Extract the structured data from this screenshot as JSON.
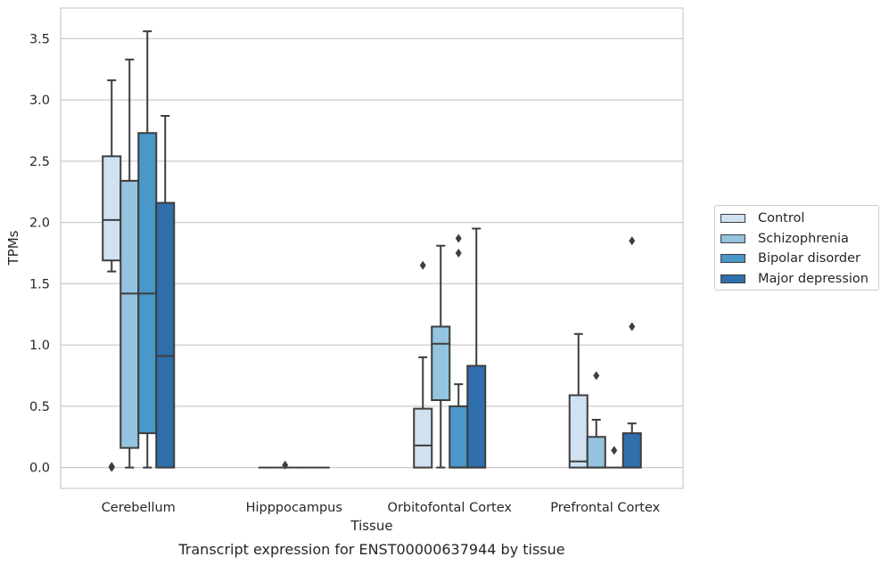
{
  "chart_data": {
    "type": "box",
    "xlabel": "Tissue",
    "ylabel": "TPMs",
    "caption": "Transcript expression for ENST00000637944 by tissue",
    "ylim": [
      -0.17,
      3.75
    ],
    "yticks": [
      0.0,
      0.5,
      1.0,
      1.5,
      2.0,
      2.5,
      3.0,
      3.5
    ],
    "ytick_labels": [
      "0.0",
      "0.5",
      "1.0",
      "1.5",
      "2.0",
      "2.5",
      "3.0",
      "3.5"
    ],
    "grid": "horizontal",
    "legend_position": "right",
    "categories": [
      "Cerebellum",
      "Hipppocampus",
      "Orbitofontal Cortex",
      "Prefrontal Cortex"
    ],
    "series": [
      {
        "name": "Control",
        "color": "#d0e1f2",
        "boxes": [
          {
            "whislo": 1.6,
            "q1": 1.69,
            "med": 2.02,
            "q3": 2.54,
            "whishi": 3.16,
            "fliers": [
              0.0,
              0.01
            ]
          },
          {
            "whislo": 0.0,
            "q1": 0.0,
            "med": 0.0,
            "q3": 0.0,
            "whishi": 0.0,
            "fliers": []
          },
          {
            "whislo": 0.0,
            "q1": 0.0,
            "med": 0.18,
            "q3": 0.48,
            "whishi": 0.9,
            "fliers": [
              1.65
            ]
          },
          {
            "whislo": 0.0,
            "q1": 0.0,
            "med": 0.05,
            "q3": 0.59,
            "whishi": 1.09,
            "fliers": []
          }
        ]
      },
      {
        "name": "Schizophrenia",
        "color": "#94c4df",
        "boxes": [
          {
            "whislo": 0.0,
            "q1": 0.16,
            "med": 1.42,
            "q3": 2.34,
            "whishi": 3.33,
            "fliers": []
          },
          {
            "whislo": 0.0,
            "q1": 0.0,
            "med": 0.0,
            "q3": 0.0,
            "whishi": 0.0,
            "fliers": [
              0.02
            ]
          },
          {
            "whislo": 0.0,
            "q1": 0.55,
            "med": 1.01,
            "q3": 1.15,
            "whishi": 1.81,
            "fliers": []
          },
          {
            "whislo": 0.0,
            "q1": 0.0,
            "med": 0.0,
            "q3": 0.25,
            "whishi": 0.39,
            "fliers": [
              0.75
            ]
          }
        ]
      },
      {
        "name": "Bipolar disorder",
        "color": "#4a98c9",
        "boxes": [
          {
            "whislo": 0.0,
            "q1": 0.28,
            "med": 1.42,
            "q3": 2.73,
            "whishi": 3.56,
            "fliers": []
          },
          {
            "whislo": 0.0,
            "q1": 0.0,
            "med": 0.0,
            "q3": 0.0,
            "whishi": 0.0,
            "fliers": []
          },
          {
            "whislo": 0.0,
            "q1": 0.0,
            "med": 0.0,
            "q3": 0.5,
            "whishi": 0.68,
            "fliers": [
              1.75,
              1.87
            ]
          },
          {
            "whislo": 0.0,
            "q1": 0.0,
            "med": 0.0,
            "q3": 0.0,
            "whishi": 0.0,
            "fliers": [
              0.14
            ]
          }
        ]
      },
      {
        "name": "Major depression",
        "color": "#2e6fac",
        "boxes": [
          {
            "whislo": 0.0,
            "q1": 0.0,
            "med": 0.91,
            "q3": 2.16,
            "whishi": 2.87,
            "fliers": []
          },
          {
            "whislo": 0.0,
            "q1": 0.0,
            "med": 0.0,
            "q3": 0.0,
            "whishi": 0.0,
            "fliers": []
          },
          {
            "whislo": 0.0,
            "q1": 0.0,
            "med": 0.0,
            "q3": 0.83,
            "whishi": 1.95,
            "fliers": []
          },
          {
            "whislo": 0.0,
            "q1": 0.0,
            "med": 0.0,
            "q3": 0.28,
            "whishi": 0.36,
            "fliers": [
              1.15,
              1.85
            ]
          }
        ]
      }
    ]
  }
}
